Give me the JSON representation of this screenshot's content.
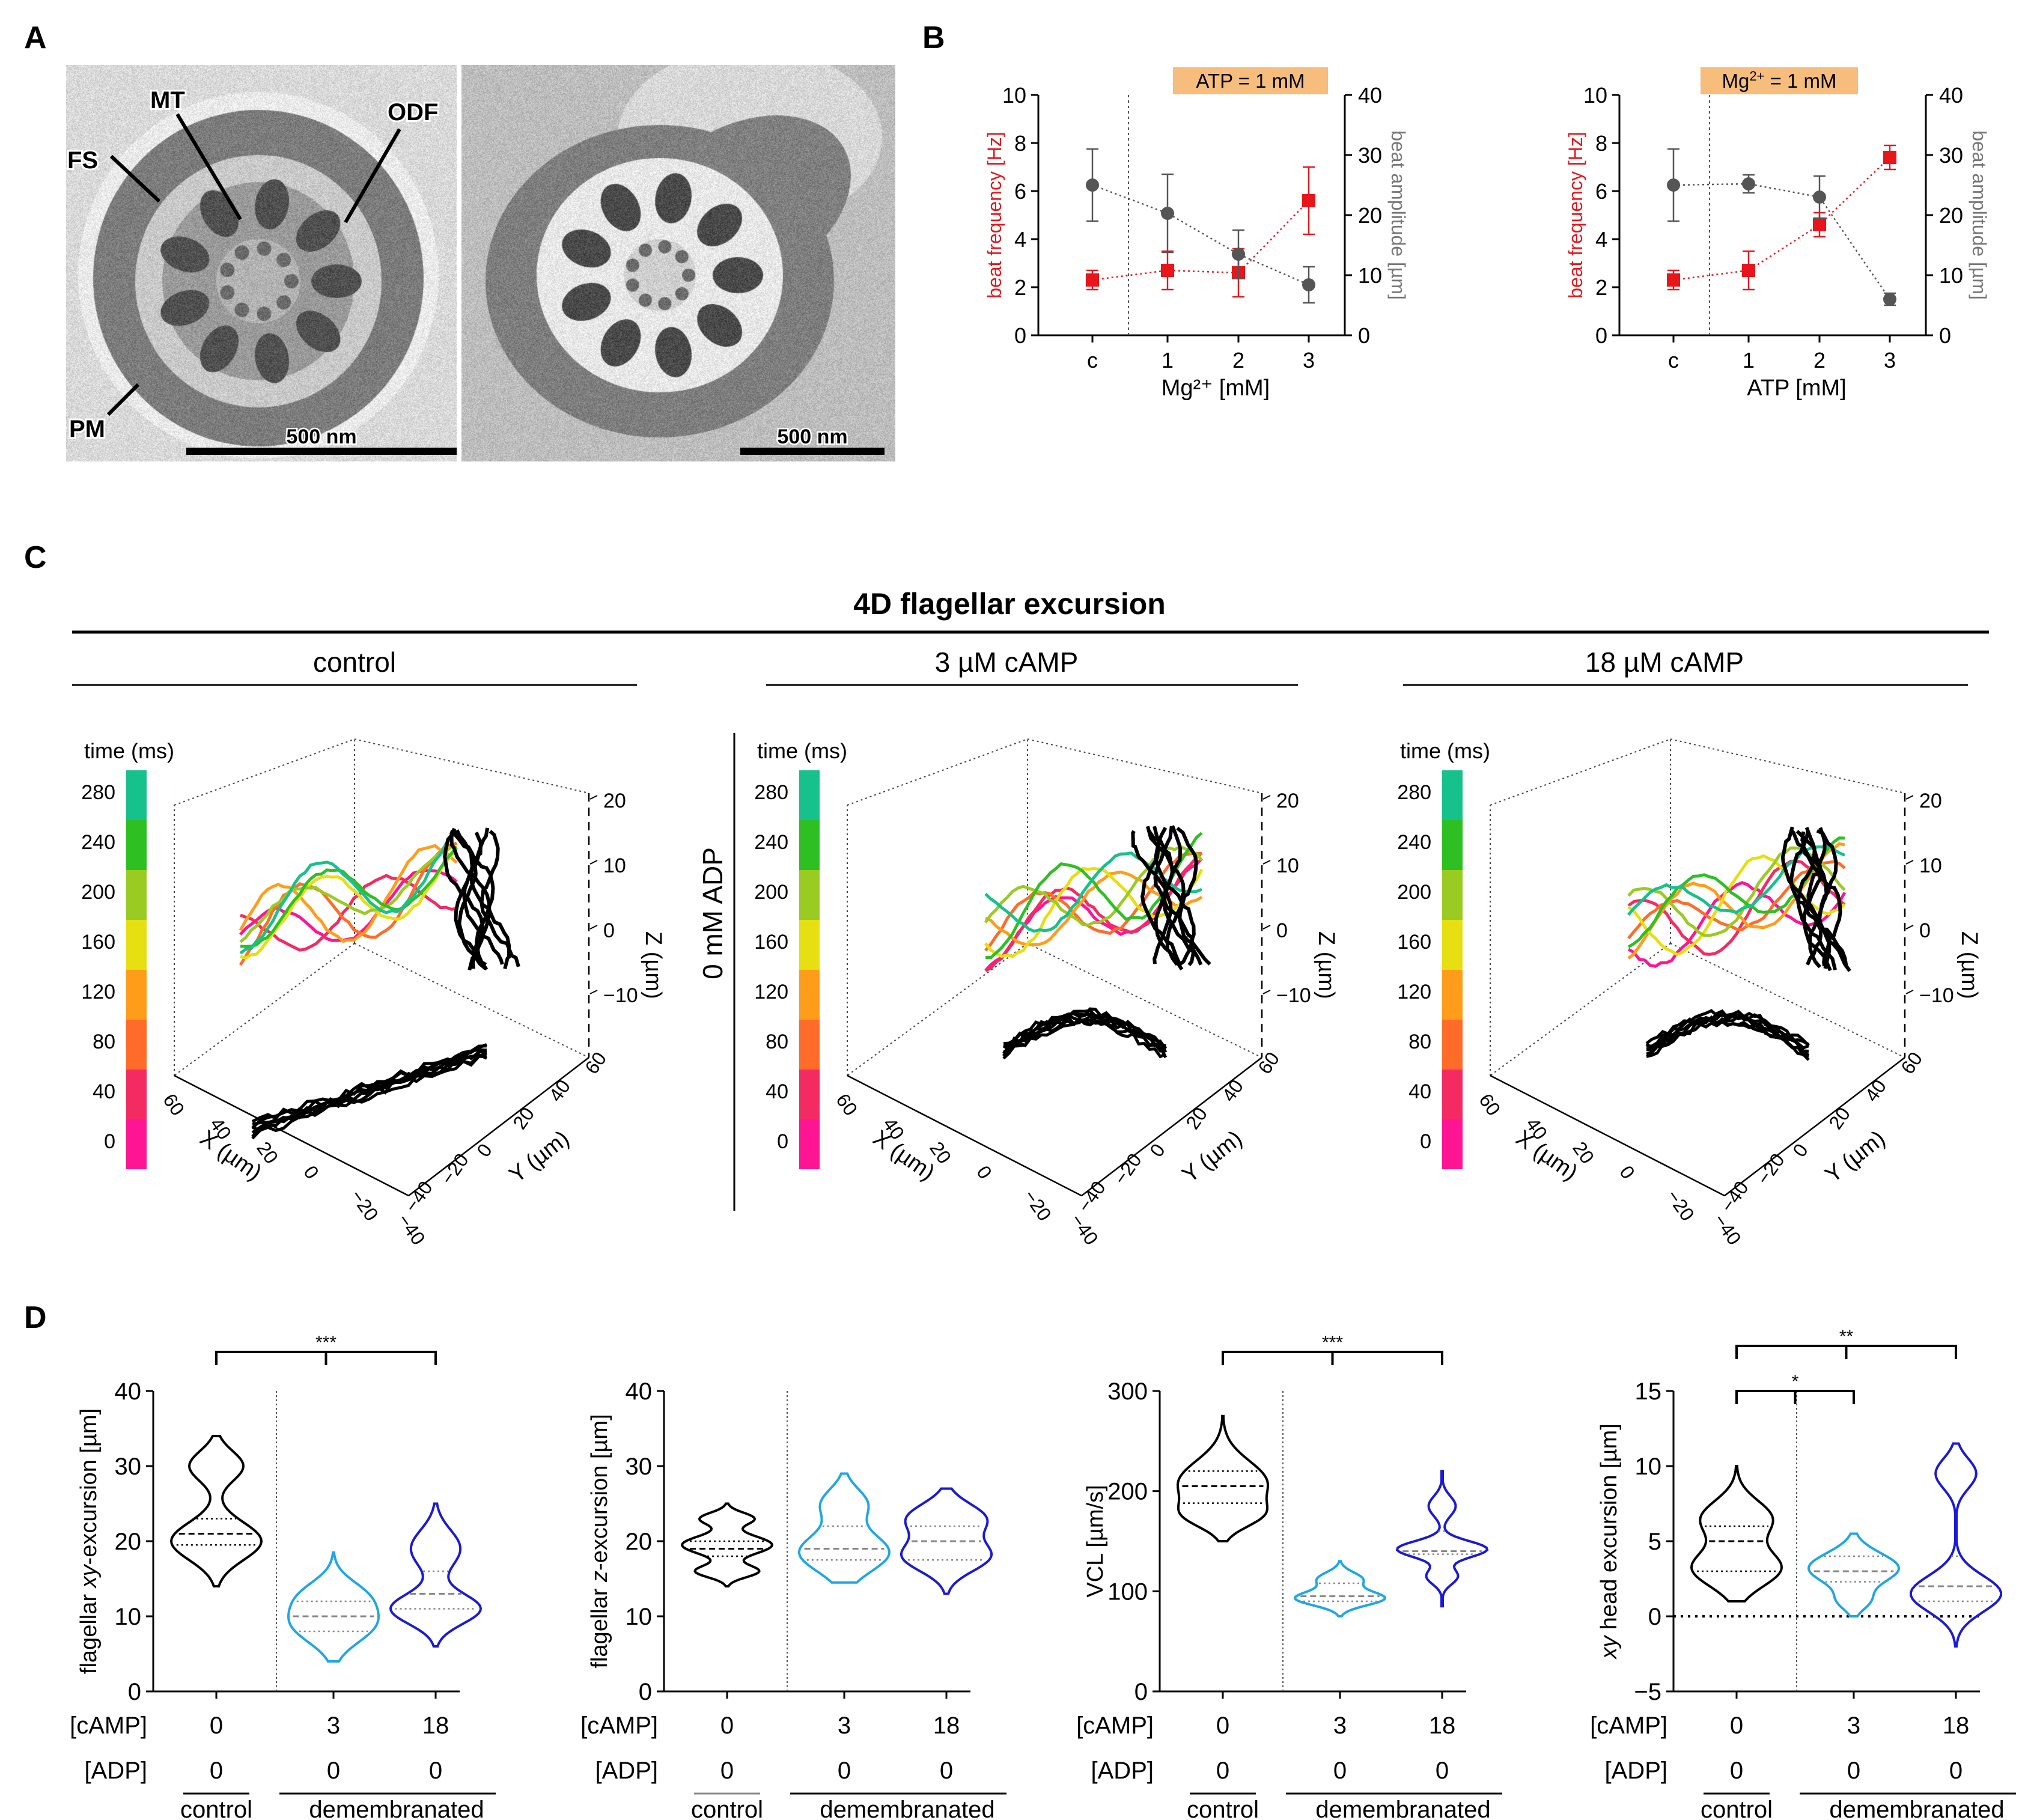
{
  "panels": {
    "A": {
      "label": "A",
      "annotations": [
        "MT",
        "ODF",
        "FS",
        "PM"
      ],
      "scalebar_left": "500 nm",
      "scalebar_right": "500 nm"
    },
    "B": {
      "label": "B",
      "left_banner": "ATP = 1 mM",
      "right_banner_base": "Mg",
      "right_banner_sup": "2+",
      "right_banner_rest": " = 1 mM"
    },
    "C": {
      "label": "C",
      "title": "4D flagellar excursion",
      "conditions": [
        "control",
        "3 µM cAMP",
        "18 µM cAMP"
      ],
      "row_label": "0 mM ADP",
      "colorbar_title": "time (ms)",
      "colorbar_ticks": [
        "280",
        "240",
        "200",
        "160",
        "120",
        "80",
        "40",
        "0"
      ],
      "z_label": "Z (µm)",
      "z_ticks": [
        "20",
        "10",
        "0",
        "−10"
      ],
      "x_label": "X (µm)",
      "x_ticks": [
        "60",
        "40",
        "20",
        "0",
        "−20",
        "−40"
      ],
      "y_label": "Y (µm)",
      "y_ticks": [
        "60",
        "40",
        "20",
        "0",
        "−20",
        "−40"
      ]
    },
    "D": {
      "label": "D",
      "row_labels": [
        "[cAMP]",
        "[ADP]"
      ],
      "cAMP_values": [
        "0",
        "3",
        "18"
      ],
      "ADP_values": [
        "0",
        "0",
        "0"
      ],
      "group_labels": [
        "control",
        "demembranated"
      ]
    }
  },
  "chart_data": [
    {
      "id": "B-left",
      "type": "line",
      "categories": [
        "c",
        "1",
        "2",
        "3"
      ],
      "xlabel": "Mg²⁺ [mM]",
      "ylabel": "beat frequency [Hz]",
      "ylim": [
        0,
        10
      ],
      "yticks": [
        "0",
        "2",
        "4",
        "6",
        "8",
        "10"
      ],
      "y2label": "beat amplitude [µm]",
      "y2lim": [
        0,
        40
      ],
      "y2ticks": [
        "0",
        "10",
        "20",
        "30",
        "40"
      ],
      "series": [
        {
          "name": "beat frequency",
          "axis": "left",
          "color": "#e8161b",
          "marker": "square",
          "values": [
            2.3,
            2.7,
            2.6,
            5.6
          ],
          "err": [
            0.4,
            0.8,
            1.0,
            1.4
          ]
        },
        {
          "name": "beat amplitude",
          "axis": "right",
          "color": "#555555",
          "marker": "circle",
          "values": [
            25.0,
            20.3,
            13.5,
            8.4
          ],
          "err": [
            6.0,
            6.5,
            4.0,
            3.0
          ]
        }
      ]
    },
    {
      "id": "B-right",
      "type": "line",
      "categories": [
        "c",
        "1",
        "2",
        "3"
      ],
      "xlabel": "ATP [mM]",
      "ylabel": "beat frequency [Hz]",
      "ylim": [
        0,
        10
      ],
      "yticks": [
        "0",
        "2",
        "4",
        "6",
        "8",
        "10"
      ],
      "y2label": "beat amplitude [µm]",
      "y2lim": [
        0,
        40
      ],
      "y2ticks": [
        "0",
        "10",
        "20",
        "30",
        "40"
      ],
      "series": [
        {
          "name": "beat frequency",
          "axis": "left",
          "color": "#e8161b",
          "marker": "square",
          "values": [
            2.3,
            2.7,
            4.6,
            7.4
          ],
          "err": [
            0.4,
            0.8,
            0.5,
            0.5
          ]
        },
        {
          "name": "beat amplitude",
          "axis": "right",
          "color": "#555555",
          "marker": "circle",
          "values": [
            25.0,
            25.2,
            23.0,
            6.0
          ],
          "err": [
            6.0,
            1.5,
            3.5,
            1.0
          ]
        }
      ]
    },
    {
      "id": "D1",
      "type": "violin",
      "ylabel_pre": "flagellar ",
      "ylabel_it": "xy",
      "ylabel_post": "-excursion [µm]",
      "ylim": [
        0,
        40
      ],
      "yticks": [
        "0",
        "10",
        "20",
        "30",
        "40"
      ],
      "groups": [
        {
          "cAMP": "0",
          "min": 14,
          "max": 34,
          "median": 21,
          "q1": 19.5,
          "q3": 23,
          "modes": [
            {
              "c": 20,
              "s": 2.5,
              "w": 1
            },
            {
              "c": 30,
              "s": 2,
              "w": 0.6
            }
          ]
        },
        {
          "cAMP": "3",
          "min": 4,
          "max": 18.5,
          "median": 10,
          "q1": 8,
          "q3": 12,
          "modes": [
            {
              "c": 9,
              "s": 2.5,
              "w": 1
            },
            {
              "c": 13,
              "s": 2,
              "w": 0.6
            }
          ]
        },
        {
          "cAMP": "18",
          "min": 6,
          "max": 25,
          "median": 13,
          "q1": 11,
          "q3": 16,
          "modes": [
            {
              "c": 11,
              "s": 2,
              "w": 1
            },
            {
              "c": 19,
              "s": 2.5,
              "w": 0.55
            }
          ]
        }
      ],
      "significance": [
        {
          "from": 0,
          "to": 2,
          "label": "***"
        }
      ]
    },
    {
      "id": "D2",
      "type": "violin",
      "ylabel_pre": "flagellar ",
      "ylabel_it": "z",
      "ylabel_post": "-excursion [µm]",
      "ylim": [
        0,
        40
      ],
      "yticks": [
        "0",
        "10",
        "20",
        "30",
        "40"
      ],
      "groups": [
        {
          "cAMP": "0",
          "min": 14,
          "max": 25,
          "median": 19,
          "q1": 18,
          "q3": 20,
          "modes": [
            {
              "c": 19.5,
              "s": 1.2,
              "w": 1
            },
            {
              "c": 16,
              "s": 0.8,
              "w": 0.7
            },
            {
              "c": 23,
              "s": 0.8,
              "w": 0.6
            }
          ]
        },
        {
          "cAMP": "3",
          "min": 14.5,
          "max": 29,
          "median": 19,
          "q1": 17.5,
          "q3": 22,
          "modes": [
            {
              "c": 18.5,
              "s": 2.5,
              "w": 1
            },
            {
              "c": 25,
              "s": 2,
              "w": 0.5
            }
          ]
        },
        {
          "cAMP": "18",
          "min": 13,
          "max": 27,
          "median": 20,
          "q1": 17.5,
          "q3": 22,
          "modes": [
            {
              "c": 18,
              "s": 2,
              "w": 1
            },
            {
              "c": 23,
              "s": 2,
              "w": 0.9
            }
          ]
        }
      ],
      "significance": []
    },
    {
      "id": "D3",
      "type": "violin",
      "ylabel_pre": "VCL [µm/s]",
      "ylabel_it": "",
      "ylabel_post": "",
      "ylim": [
        0,
        300
      ],
      "yticks": [
        "0",
        "100",
        "200",
        "300"
      ],
      "groups": [
        {
          "cAMP": "0",
          "min": 150,
          "max": 275,
          "median": 205,
          "q1": 188,
          "q3": 220,
          "modes": [
            {
              "c": 208,
              "s": 22,
              "w": 1
            },
            {
              "c": 175,
              "s": 12,
              "w": 0.6
            }
          ]
        },
        {
          "cAMP": "3",
          "min": 75,
          "max": 130,
          "median": 95,
          "q1": 90,
          "q3": 108,
          "modes": [
            {
              "c": 93,
              "s": 7,
              "w": 1
            },
            {
              "c": 112,
              "s": 7,
              "w": 0.5
            }
          ]
        },
        {
          "cAMP": "18",
          "min": 85,
          "max": 220,
          "median": 140,
          "q1": 137,
          "q3": 160,
          "modes": [
            {
              "c": 142,
              "s": 8,
              "w": 1
            },
            {
              "c": 115,
              "s": 8,
              "w": 0.35
            },
            {
              "c": 185,
              "s": 10,
              "w": 0.3
            }
          ]
        }
      ],
      "significance": [
        {
          "from": 0,
          "to": 2,
          "label": "***"
        }
      ]
    },
    {
      "id": "D4",
      "type": "violin",
      "ylabel_pre": "",
      "ylabel_it": "xy",
      "ylabel_post": " head excursion [µm]",
      "ylim": [
        -5,
        15
      ],
      "yticks": [
        "−5",
        "0",
        "5",
        "10",
        "15"
      ],
      "zero_line": true,
      "groups": [
        {
          "cAMP": "0",
          "min": 1,
          "max": 10,
          "median": 5,
          "q1": 3,
          "q3": 6,
          "modes": [
            {
              "c": 3.2,
              "s": 1.2,
              "w": 1
            },
            {
              "c": 6.5,
              "s": 1.2,
              "w": 0.8
            }
          ]
        },
        {
          "cAMP": "3",
          "min": 0,
          "max": 5.5,
          "median": 3,
          "q1": 2.3,
          "q3": 4,
          "modes": [
            {
              "c": 3.2,
              "s": 1,
              "w": 1
            },
            {
              "c": 1,
              "s": 0.6,
              "w": 0.3
            }
          ]
        },
        {
          "cAMP": "18",
          "min": -2,
          "max": 11.5,
          "median": 2,
          "q1": 1,
          "q3": 4,
          "modes": [
            {
              "c": 1.5,
              "s": 1.2,
              "w": 1
            },
            {
              "c": 9.5,
              "s": 1,
              "w": 0.45
            }
          ]
        }
      ],
      "significance": [
        {
          "from": 0,
          "to": 1,
          "label": "*"
        },
        {
          "from": 0,
          "to": 2,
          "label": "**"
        }
      ]
    }
  ]
}
